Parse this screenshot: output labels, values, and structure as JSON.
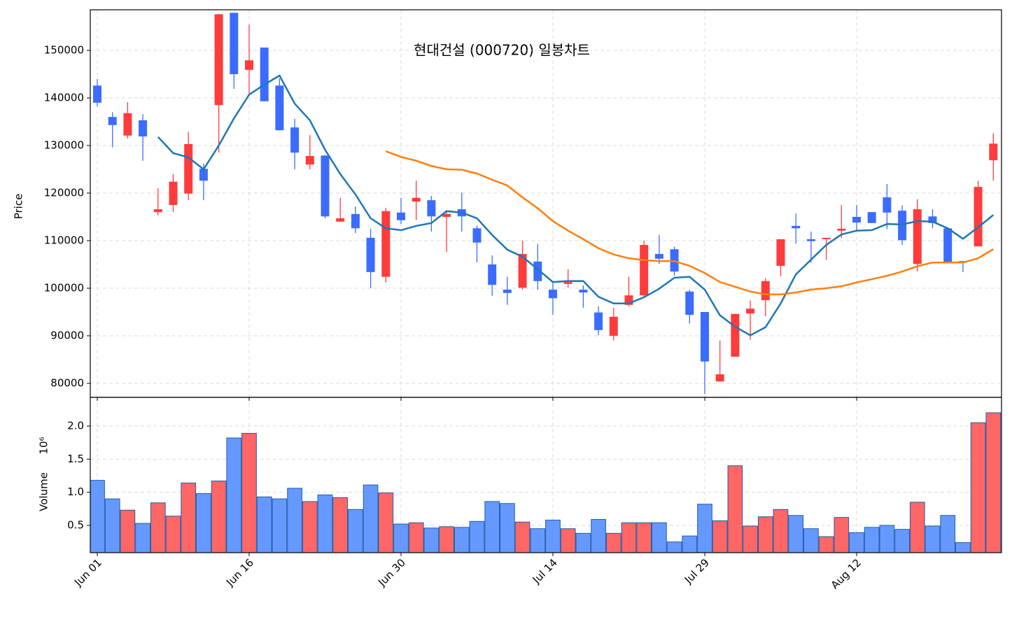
{
  "chart_data": {
    "type": "candlestick",
    "title": "현대건설 (000720) 일봉차트",
    "ylabel": "Price",
    "categories": [
      "Jun 01",
      null,
      null,
      null,
      null,
      null,
      null,
      null,
      null,
      null,
      "Jun 16",
      null,
      null,
      null,
      null,
      null,
      null,
      null,
      null,
      null,
      "Jun 30",
      null,
      null,
      null,
      null,
      null,
      null,
      null,
      null,
      null,
      "Jul 14",
      null,
      null,
      null,
      null,
      null,
      null,
      null,
      null,
      null,
      "Jul 29",
      null,
      null,
      null,
      null,
      null,
      null,
      null,
      null,
      null,
      "Aug 12",
      null,
      null,
      null,
      null,
      null,
      null,
      null,
      null,
      null
    ],
    "open": [
      142600,
      136000,
      132100,
      135300,
      116000,
      117500,
      119900,
      125100,
      138500,
      157900,
      145900,
      150600,
      142600,
      133800,
      126000,
      127900,
      114000,
      115600,
      110600,
      102400,
      115900,
      118200,
      118500,
      115000,
      116600,
      112600,
      105000,
      99700,
      100100,
      105600,
      99700,
      100900,
      99700,
      94900,
      90000,
      96500,
      98500,
      107200,
      108200,
      99300,
      95000,
      80400,
      85600,
      94700,
      97500,
      104700,
      113100,
      110300,
      110300,
      112100,
      115000,
      116000,
      119100,
      116300,
      105100,
      115100,
      112600,
      105700,
      108800,
      126900
    ],
    "high": [
      144000,
      137000,
      139100,
      136600,
      121000,
      124000,
      132900,
      126200,
      157600,
      157900,
      155400,
      150600,
      144100,
      135600,
      132200,
      127900,
      119000,
      117200,
      112500,
      116900,
      119000,
      122600,
      119400,
      116000,
      120100,
      113200,
      106900,
      102400,
      110000,
      109300,
      101200,
      104000,
      100600,
      96200,
      95900,
      102400,
      110000,
      111200,
      108700,
      99700,
      95000,
      89000,
      94600,
      97400,
      102100,
      110300,
      115700,
      111900,
      110600,
      117500,
      117500,
      116000,
      121900,
      117400,
      118700,
      116600,
      112600,
      105700,
      122600,
      132600
    ],
    "low": [
      138200,
      129600,
      131500,
      126800,
      115300,
      116000,
      118500,
      118500,
      128500,
      141900,
      140700,
      139300,
      133200,
      125000,
      125000,
      114700,
      114000,
      111600,
      100000,
      101200,
      113500,
      114300,
      111900,
      107600,
      111900,
      105400,
      98400,
      96500,
      99700,
      99700,
      94400,
      100100,
      95900,
      90100,
      89000,
      96200,
      98100,
      105100,
      102600,
      92600,
      77800,
      80400,
      85600,
      89100,
      94100,
      102500,
      109400,
      105400,
      105900,
      110600,
      111900,
      113700,
      112400,
      109100,
      103500,
      112600,
      105300,
      103400,
      108800,
      122600
    ],
    "close": [
      139000,
      134300,
      136800,
      131900,
      116600,
      122400,
      130300,
      122600,
      157600,
      145000,
      147900,
      139300,
      133200,
      128500,
      127800,
      115100,
      114700,
      112600,
      103400,
      116200,
      114300,
      119000,
      115100,
      115600,
      115100,
      109600,
      100700,
      99000,
      107200,
      101500,
      97900,
      101300,
      99100,
      91200,
      94000,
      98500,
      109100,
      106200,
      103500,
      94400,
      84600,
      81900,
      94600,
      95700,
      101500,
      110300,
      112600,
      109900,
      110600,
      112500,
      113800,
      113700,
      115900,
      110100,
      116600,
      113700,
      105300,
      105400,
      121300,
      130400
    ],
    "up_color": "#ff3b3b",
    "down_color": "#3b6cff",
    "lines": [
      {
        "color": "#1f77b4",
        "values": [
          null,
          null,
          null,
          null,
          131800,
          128400,
          127500,
          125000,
          130000,
          135700,
          140700,
          142800,
          144700,
          138800,
          135300,
          129100,
          124000,
          119700,
          114700,
          112600,
          112200,
          113100,
          113700,
          116200,
          115900,
          114700,
          111200,
          108100,
          106600,
          104000,
          101300,
          101500,
          101500,
          98200,
          96800,
          96800,
          98100,
          99900,
          102200,
          102400,
          99700,
          94300,
          91900,
          90100,
          91800,
          96800,
          102900,
          106000,
          109100,
          111300,
          112100,
          112200,
          113500,
          113400,
          114100,
          114000,
          112600,
          110400,
          112800,
          115400
        ]
      },
      {
        "color": "#ff7f0e",
        "values": [
          null,
          null,
          null,
          null,
          null,
          null,
          null,
          null,
          null,
          null,
          null,
          null,
          null,
          null,
          null,
          null,
          null,
          null,
          null,
          128800,
          127600,
          126800,
          125700,
          125000,
          124900,
          124100,
          122800,
          121600,
          119100,
          116800,
          114100,
          112100,
          110300,
          108400,
          107100,
          106300,
          105900,
          105700,
          105700,
          104700,
          103200,
          101300,
          100300,
          99300,
          98700,
          98700,
          99100,
          99700,
          100000,
          100400,
          101200,
          101900,
          102600,
          103500,
          104600,
          105400,
          105400,
          105400,
          106300,
          108200
        ]
      }
    ],
    "ylim": [
      77059,
      158529
    ],
    "yticks": [
      80000,
      90000,
      100000,
      110000,
      120000,
      130000,
      140000,
      150000
    ],
    "grid": true,
    "volume": {
      "ylabel": "Volume",
      "offset_label": "10⁶",
      "values": [
        1.18,
        0.9,
        0.73,
        0.53,
        0.84,
        0.64,
        1.14,
        0.98,
        1.17,
        1.82,
        1.89,
        0.93,
        0.9,
        1.06,
        0.86,
        0.96,
        0.92,
        0.74,
        1.11,
        0.99,
        0.52,
        0.54,
        0.46,
        0.48,
        0.47,
        0.56,
        0.86,
        0.83,
        0.55,
        0.45,
        0.58,
        0.45,
        0.38,
        0.59,
        0.38,
        0.54,
        0.54,
        0.54,
        0.25,
        0.34,
        0.82,
        0.57,
        1.4,
        0.49,
        0.63,
        0.74,
        0.65,
        0.45,
        0.33,
        0.62,
        0.39,
        0.47,
        0.5,
        0.44,
        0.85,
        0.49,
        0.65,
        0.24,
        2.05,
        2.2
      ],
      "up_color": "#ff6666",
      "down_color": "#6699ff",
      "ylim": [
        0.088,
        2.433
      ],
      "yticks": [
        0.5,
        {
          "value": 1,
          "label": "1.0"
        },
        1.5,
        {
          "value": 2,
          "label": "2.0"
        }
      ]
    }
  }
}
